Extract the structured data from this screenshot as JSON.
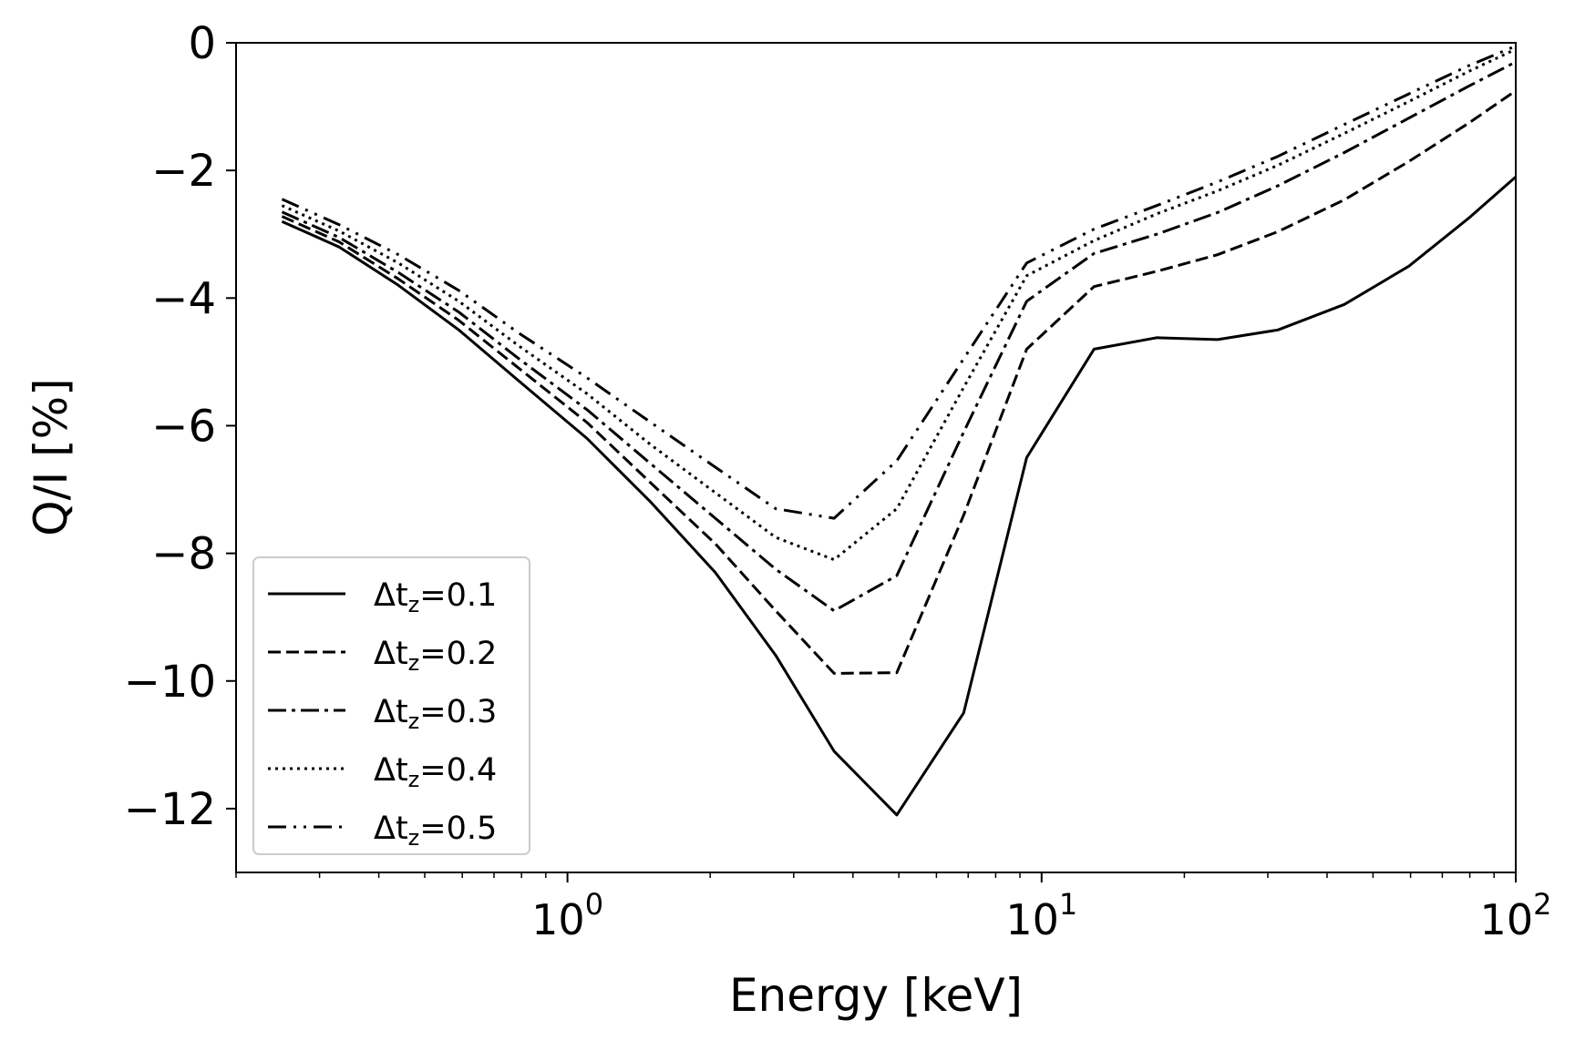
{
  "chart_data": {
    "type": "line",
    "xlabel": "Energy [keV]",
    "ylabel": "Q/I [%]",
    "xscale": "log",
    "xlim": [
      0.2,
      100
    ],
    "ylim": [
      -13,
      0
    ],
    "x_ticks": [
      {
        "value": 1,
        "base": "10",
        "exp": "0"
      },
      {
        "value": 10,
        "base": "10",
        "exp": "1"
      },
      {
        "value": 100,
        "base": "10",
        "exp": "2"
      }
    ],
    "y_ticks": [
      {
        "value": 0,
        "label": "0"
      },
      {
        "value": -2,
        "label": "−2"
      },
      {
        "value": -4,
        "label": "−4"
      },
      {
        "value": -6,
        "label": "−6"
      },
      {
        "value": -8,
        "label": "−8"
      },
      {
        "value": -10,
        "label": "−10"
      },
      {
        "value": -12,
        "label": "−12"
      }
    ],
    "grid": false,
    "legend_position": "lower-left",
    "color": "#000000",
    "x": [
      0.25,
      0.33,
      0.44,
      0.59,
      0.79,
      1.1,
      1.5,
      2.05,
      2.75,
      3.65,
      4.95,
      6.85,
      9.3,
      12.9,
      17.5,
      23.5,
      31.5,
      43.5,
      59.5,
      79.5,
      100
    ],
    "series": [
      {
        "name_prefix": "Δt",
        "name_sub": "z",
        "name_value": "=0.1",
        "dash": "solid",
        "values": [
          -2.8,
          -3.2,
          -3.8,
          -4.5,
          -5.3,
          -6.2,
          -7.2,
          -8.3,
          -9.6,
          -11.1,
          -12.1,
          -10.5,
          -6.5,
          -4.8,
          -4.62,
          -4.65,
          -4.5,
          -4.1,
          -3.5,
          -2.75,
          -2.1
        ]
      },
      {
        "name_prefix": "Δt",
        "name_sub": "z",
        "name_value": "=0.2",
        "dash": "dashed",
        "values": [
          -2.72,
          -3.12,
          -3.7,
          -4.35,
          -5.1,
          -5.95,
          -6.9,
          -7.85,
          -8.9,
          -9.88,
          -9.87,
          -7.4,
          -4.8,
          -3.82,
          -3.58,
          -3.32,
          -2.96,
          -2.46,
          -1.86,
          -1.26,
          -0.75
        ]
      },
      {
        "name_prefix": "Δt",
        "name_sub": "z",
        "name_value": "=0.3",
        "dash": "dashdot",
        "values": [
          -2.65,
          -3.05,
          -3.6,
          -4.22,
          -4.95,
          -5.75,
          -6.6,
          -7.45,
          -8.25,
          -8.9,
          -8.35,
          -6.1,
          -4.05,
          -3.3,
          -3.0,
          -2.66,
          -2.24,
          -1.72,
          -1.18,
          -0.68,
          -0.3
        ]
      },
      {
        "name_prefix": "Δt",
        "name_sub": "z",
        "name_value": "=0.4",
        "dash": "dotted",
        "values": [
          -2.55,
          -2.95,
          -3.45,
          -4.05,
          -4.75,
          -5.5,
          -6.3,
          -7.05,
          -7.75,
          -8.1,
          -7.3,
          -5.4,
          -3.65,
          -3.1,
          -2.68,
          -2.32,
          -1.92,
          -1.42,
          -0.92,
          -0.45,
          -0.1
        ]
      },
      {
        "name_prefix": "Δt",
        "name_sub": "z",
        "name_value": "=0.5",
        "dash": "dashdotdot",
        "values": [
          -2.45,
          -2.85,
          -3.32,
          -3.88,
          -4.55,
          -5.25,
          -5.95,
          -6.65,
          -7.3,
          -7.45,
          -6.55,
          -4.95,
          -3.45,
          -2.92,
          -2.55,
          -2.18,
          -1.78,
          -1.28,
          -0.8,
          -0.36,
          -0.05
        ]
      }
    ]
  }
}
